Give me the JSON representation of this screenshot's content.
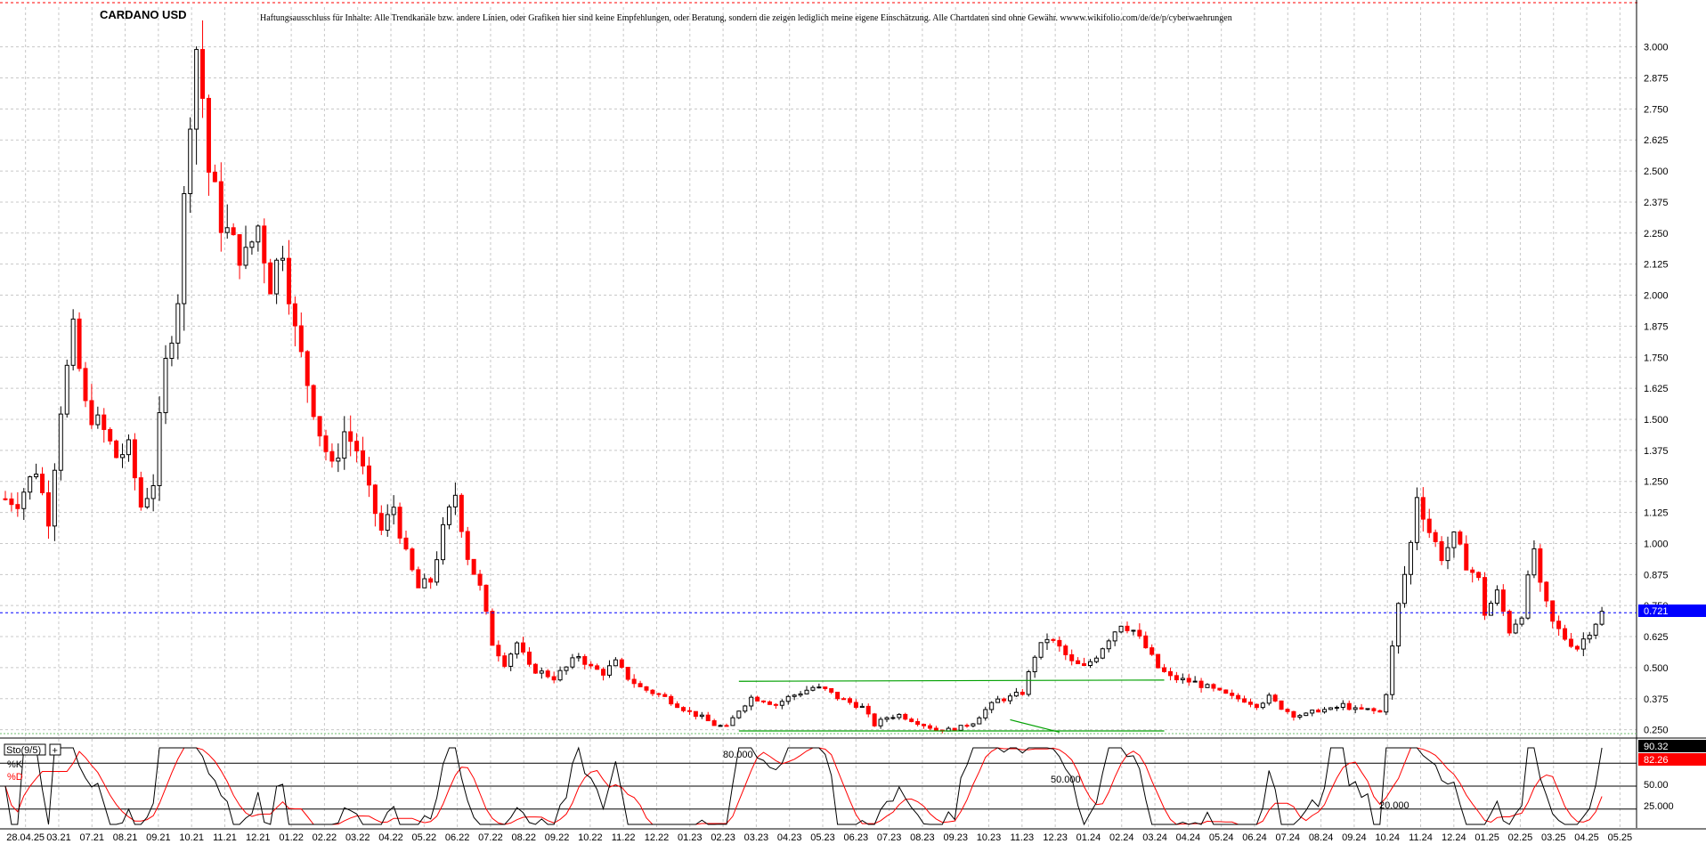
{
  "chart_data": {
    "type": "candlestick",
    "title": "CARDANO USD",
    "disclaimer": "Haftungsausschluss für Inhalte: Alle Trendkanäle bzw. andere Linien, oder Grafiken hier sind keine Empfehlungen, oder Beratung, sondern die zeigen lediglich meine eigene Einschätzung. Alle Chartdaten sind ohne Gewähr. wwww.wikifolio.com/de/de/p/cyberwaehrungen",
    "ylim": [
      0.22,
      3.16
    ],
    "y_ticks": [
      "3.000",
      "2.875",
      "2.750",
      "2.625",
      "2.500",
      "2.375",
      "2.250",
      "2.125",
      "2.000",
      "1.875",
      "1.750",
      "1.625",
      "1.500",
      "1.375",
      "1.250",
      "1.125",
      "1.000",
      "0.875",
      "0.750",
      "0.625",
      "0.500",
      "0.375",
      "0.250"
    ],
    "x_labels": [
      "28.04.25",
      "03.21",
      "07.21",
      "08.21",
      "09.21",
      "10.21",
      "11.21",
      "12.21",
      "01.22",
      "02.22",
      "03.22",
      "04.22",
      "05.22",
      "06.22",
      "07.22",
      "08.22",
      "09.22",
      "10.22",
      "11.22",
      "12.22",
      "01.23",
      "02.23",
      "03.23",
      "04.23",
      "05.23",
      "06.23",
      "07.23",
      "08.23",
      "09.23",
      "10.23",
      "11.23",
      "12.23",
      "01.24",
      "02.24",
      "03.24",
      "04.24",
      "05.24",
      "06.24",
      "07.24",
      "08.24",
      "09.24",
      "10.24",
      "11.24",
      "12.24",
      "01.25",
      "02.25",
      "03.25",
      "04.25",
      "05.25"
    ],
    "current_price": "0.721",
    "current_price_value": 0.721,
    "price_path": [
      [
        0,
        1.18
      ],
      [
        2,
        1.17
      ],
      [
        5,
        1.3
      ],
      [
        7,
        1.1
      ],
      [
        9,
        1.55
      ],
      [
        11,
        1.85
      ],
      [
        13,
        1.55
      ],
      [
        16,
        1.45
      ],
      [
        18,
        1.35
      ],
      [
        20,
        1.38
      ],
      [
        22,
        1.15
      ],
      [
        24,
        1.25
      ],
      [
        26,
        1.72
      ],
      [
        28,
        2.0
      ],
      [
        30,
        2.75
      ],
      [
        31,
        3.0
      ],
      [
        32,
        2.8
      ],
      [
        33,
        2.5
      ],
      [
        35,
        2.3
      ],
      [
        37,
        2.2
      ],
      [
        39,
        2.15
      ],
      [
        41,
        2.28
      ],
      [
        43,
        2.05
      ],
      [
        45,
        2.2
      ],
      [
        47,
        1.85
      ],
      [
        49,
        1.65
      ],
      [
        51,
        1.45
      ],
      [
        53,
        1.3
      ],
      [
        55,
        1.45
      ],
      [
        57,
        1.38
      ],
      [
        59,
        1.2
      ],
      [
        61,
        1.05
      ],
      [
        63,
        1.15
      ],
      [
        65,
        0.95
      ],
      [
        67,
        0.82
      ],
      [
        69,
        0.85
      ],
      [
        71,
        1.05
      ],
      [
        73,
        1.2
      ],
      [
        75,
        0.95
      ],
      [
        77,
        0.82
      ],
      [
        79,
        0.6
      ],
      [
        81,
        0.52
      ],
      [
        83,
        0.6
      ],
      [
        85,
        0.5
      ],
      [
        87,
        0.48
      ],
      [
        89,
        0.46
      ],
      [
        91,
        0.5
      ],
      [
        93,
        0.55
      ],
      [
        95,
        0.5
      ],
      [
        97,
        0.48
      ],
      [
        99,
        0.52
      ],
      [
        101,
        0.46
      ],
      [
        103,
        0.42
      ],
      [
        105,
        0.4
      ],
      [
        107,
        0.38
      ],
      [
        109,
        0.35
      ],
      [
        111,
        0.32
      ],
      [
        113,
        0.3
      ],
      [
        115,
        0.27
      ],
      [
        117,
        0.26
      ],
      [
        119,
        0.33
      ],
      [
        121,
        0.38
      ],
      [
        123,
        0.37
      ],
      [
        125,
        0.35
      ],
      [
        127,
        0.38
      ],
      [
        129,
        0.4
      ],
      [
        131,
        0.42
      ],
      [
        133,
        0.41
      ],
      [
        135,
        0.38
      ],
      [
        137,
        0.36
      ],
      [
        139,
        0.34
      ],
      [
        141,
        0.27
      ],
      [
        143,
        0.3
      ],
      [
        145,
        0.31
      ],
      [
        147,
        0.29
      ],
      [
        149,
        0.27
      ],
      [
        151,
        0.25
      ],
      [
        153,
        0.25
      ],
      [
        155,
        0.26
      ],
      [
        157,
        0.28
      ],
      [
        159,
        0.33
      ],
      [
        161,
        0.37
      ],
      [
        163,
        0.38
      ],
      [
        165,
        0.4
      ],
      [
        167,
        0.55
      ],
      [
        169,
        0.62
      ],
      [
        171,
        0.58
      ],
      [
        173,
        0.52
      ],
      [
        175,
        0.5
      ],
      [
        177,
        0.55
      ],
      [
        179,
        0.62
      ],
      [
        181,
        0.68
      ],
      [
        183,
        0.65
      ],
      [
        185,
        0.58
      ],
      [
        187,
        0.5
      ],
      [
        189,
        0.46
      ],
      [
        191,
        0.45
      ],
      [
        193,
        0.44
      ],
      [
        195,
        0.42
      ],
      [
        197,
        0.4
      ],
      [
        199,
        0.38
      ],
      [
        201,
        0.37
      ],
      [
        203,
        0.35
      ],
      [
        205,
        0.38
      ],
      [
        207,
        0.34
      ],
      [
        209,
        0.31
      ],
      [
        211,
        0.31
      ],
      [
        213,
        0.33
      ],
      [
        215,
        0.33
      ],
      [
        217,
        0.35
      ],
      [
        219,
        0.33
      ],
      [
        221,
        0.33
      ],
      [
        223,
        0.32
      ],
      [
        224,
        0.4
      ],
      [
        225,
        0.58
      ],
      [
        226,
        0.75
      ],
      [
        228,
        1.0
      ],
      [
        229,
        1.2
      ],
      [
        231,
        1.05
      ],
      [
        233,
        0.95
      ],
      [
        235,
        1.02
      ],
      [
        237,
        0.92
      ],
      [
        239,
        0.85
      ],
      [
        240,
        0.72
      ],
      [
        242,
        0.8
      ],
      [
        244,
        0.65
      ],
      [
        246,
        0.72
      ],
      [
        248,
        0.98
      ],
      [
        249,
        0.82
      ],
      [
        251,
        0.68
      ],
      [
        253,
        0.62
      ],
      [
        255,
        0.58
      ],
      [
        257,
        0.65
      ],
      [
        259,
        0.72
      ]
    ],
    "support_line": 0.245,
    "resistance_line": 0.445,
    "indicator": {
      "label": "Sto(9/5)",
      "k_label": "%K",
      "d_label": "%D",
      "k_value": "90.32",
      "d_value": "82.26",
      "levels": [
        "80.000",
        "50.000",
        "20.000"
      ],
      "axis_ticks": [
        "50.00",
        "25.000"
      ],
      "ylim": [
        0,
        100
      ]
    },
    "colors": {
      "up": "#000000",
      "down": "#ff0000",
      "grid": "#c8c8c8",
      "price_line": "#0000ff",
      "trend": "#00a000",
      "k_badge": "#000000",
      "d_badge": "#ff0000"
    }
  }
}
